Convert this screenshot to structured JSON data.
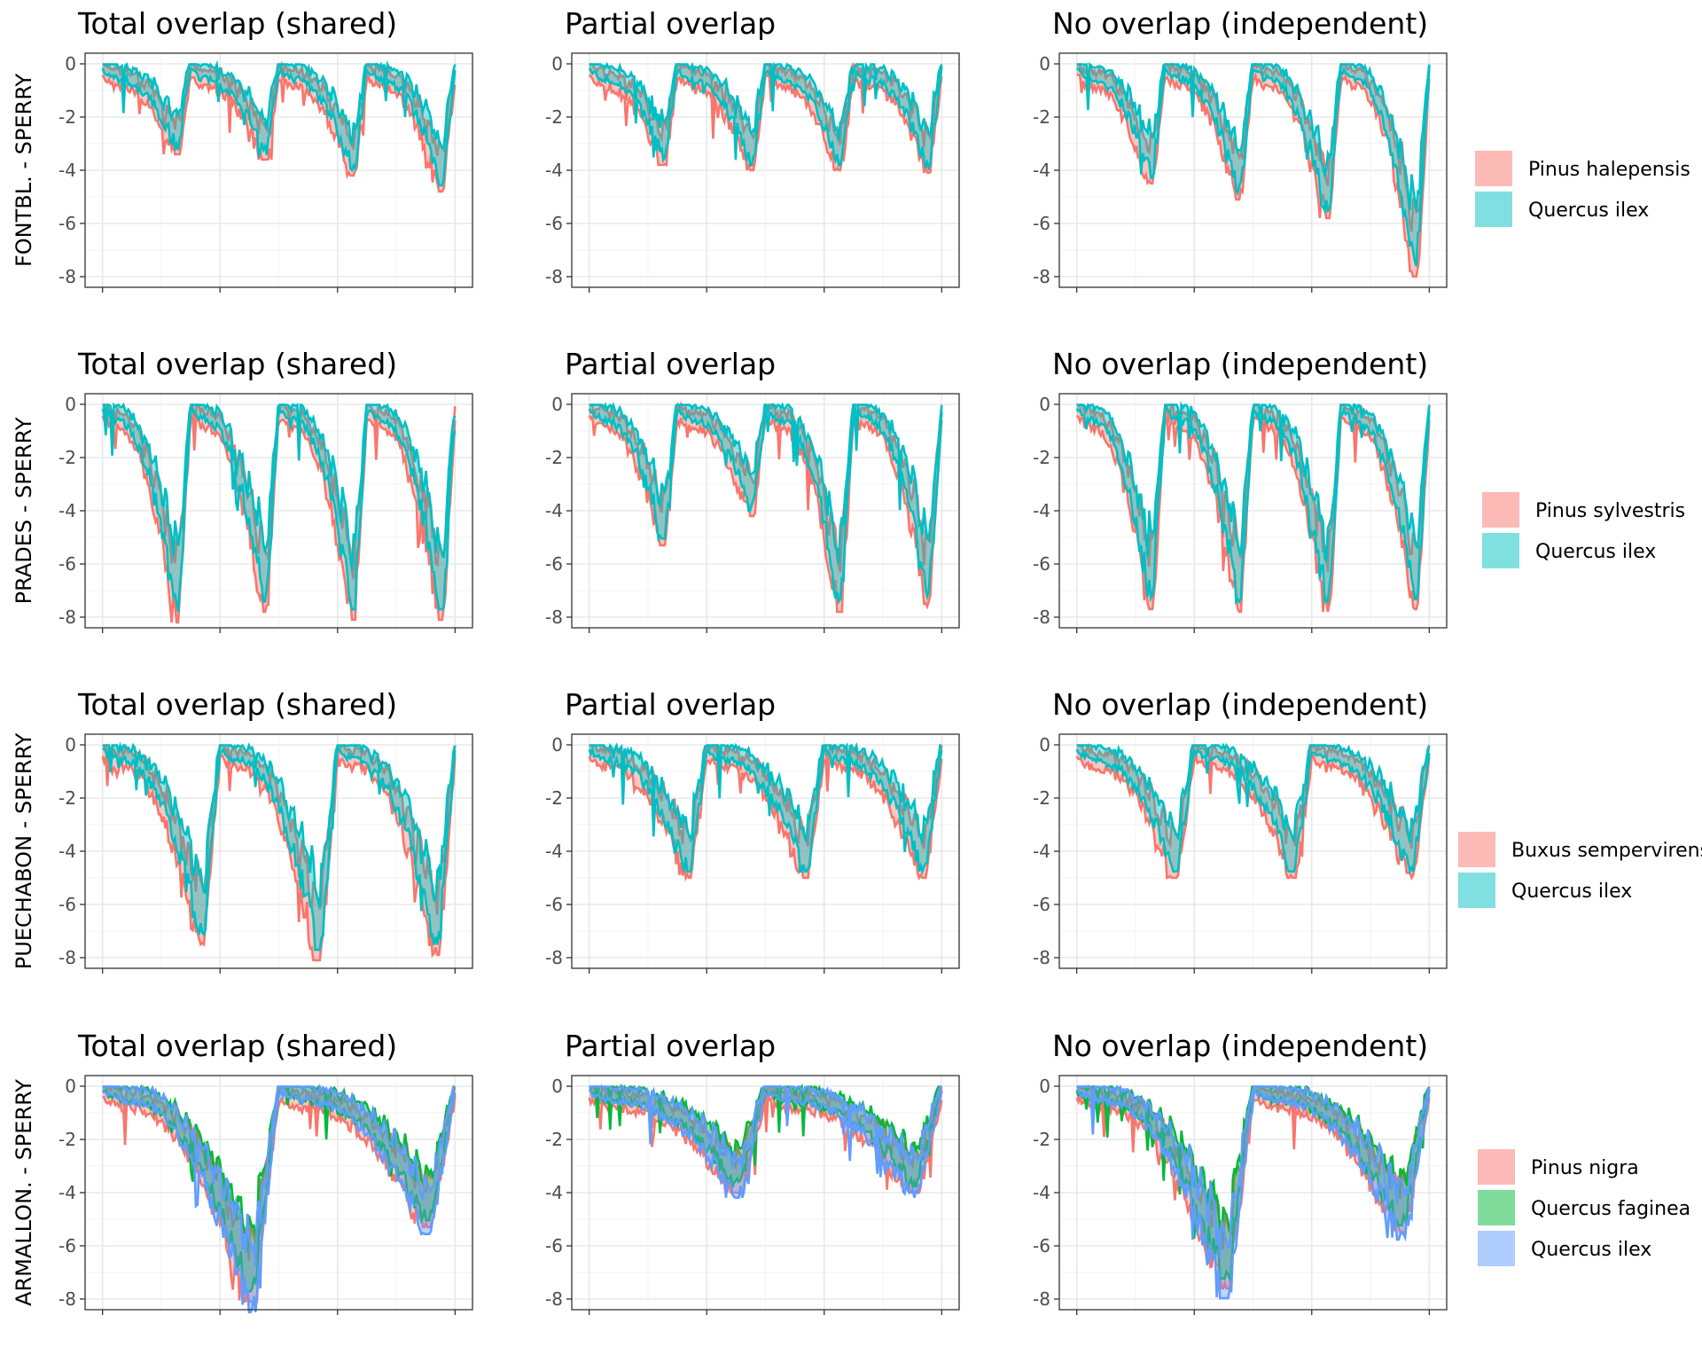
{
  "chart_data": [
    {
      "type": "line",
      "row_label": "FONTBL. - SPERRY",
      "panels": [
        "Total overlap (shared)",
        "Partial overlap",
        "No overlap (independent)"
      ],
      "ylim": [
        -8,
        0
      ],
      "yticks": [
        0,
        -2,
        -4,
        -6,
        -8
      ],
      "xticks": [],
      "series": [
        {
          "name": "Pinus halepensis",
          "color": "#F8766D"
        },
        {
          "name": "Quercus ilex",
          "color": "#00BFC4"
        }
      ],
      "dips": [
        {
          "min": [
            -3.2,
            -3.6,
            -4.3
          ]
        },
        {
          "min": [
            -3.4,
            -3.8,
            -4.9
          ]
        },
        {
          "min": [
            -4.0,
            -3.8,
            -5.6
          ]
        },
        {
          "min": [
            -4.6,
            -3.9,
            -7.8
          ]
        }
      ],
      "legend_position": "right"
    },
    {
      "type": "line",
      "row_label": "PRADES - SPERRY",
      "panels": [
        "Total overlap (shared)",
        "Partial overlap",
        "No overlap (independent)"
      ],
      "ylim": [
        -8,
        0
      ],
      "yticks": [
        0,
        -2,
        -4,
        -6,
        -8
      ],
      "xticks": [],
      "series": [
        {
          "name": "Pinus sylvestris",
          "color": "#F8766D"
        },
        {
          "name": "Quercus ilex",
          "color": "#00BFC4"
        }
      ],
      "dips": [
        {
          "min": [
            -8.0,
            -5.1,
            -7.5
          ]
        },
        {
          "min": [
            -7.6,
            -4.0,
            -7.6
          ]
        },
        {
          "min": [
            -7.9,
            -7.6,
            -7.6
          ]
        },
        {
          "min": [
            -7.9,
            -7.4,
            -7.5
          ]
        }
      ],
      "legend_position": "right"
    },
    {
      "type": "line",
      "row_label": "PUECHABON - SPERRY",
      "panels": [
        "Total overlap (shared)",
        "Partial overlap",
        "No overlap (independent)"
      ],
      "ylim": [
        -8,
        0
      ],
      "yticks": [
        0,
        -2,
        -4,
        -6,
        -8
      ],
      "xticks": [],
      "series": [
        {
          "name": "Buxus sempervirens",
          "color": "#F8766D"
        },
        {
          "name": "Quercus ilex",
          "color": "#00BFC4"
        }
      ],
      "dips": [
        {
          "min": [
            -7.3,
            -4.8,
            -4.8
          ]
        },
        {
          "min": [
            -7.9,
            -4.8,
            -4.8
          ]
        },
        {
          "min": [
            -7.7,
            -4.8,
            -4.8
          ]
        }
      ],
      "legend_position": "right"
    },
    {
      "type": "line",
      "row_label": "ARMALLON. - SPERRY",
      "panels": [
        "Total overlap (shared)",
        "Partial overlap",
        "No overlap (independent)"
      ],
      "ylim": [
        -8,
        0
      ],
      "yticks": [
        0,
        -2,
        -4,
        -6,
        -8
      ],
      "xticks": [],
      "series": [
        {
          "name": "Pinus nigra",
          "color": "#F8766D"
        },
        {
          "name": "Quercus faginea",
          "color": "#00BA38"
        },
        {
          "name": "Quercus ilex",
          "color": "#619CFF"
        }
      ],
      "dips": [
        {
          "min": [
            -7.9,
            -3.8,
            -7.4
          ]
        },
        {
          "min": [
            -5.1,
            -3.8,
            -5.3
          ]
        }
      ],
      "legend_position": "right"
    }
  ]
}
